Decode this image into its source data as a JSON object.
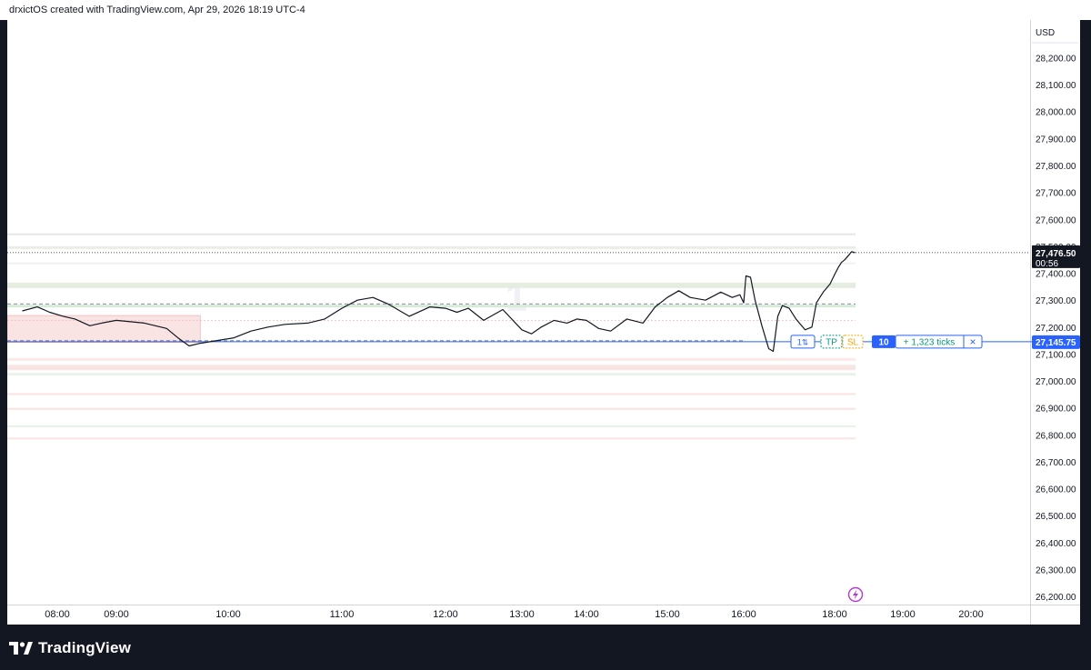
{
  "header": {
    "caption": "drxictOS created with TradingView.com, Apr 29, 2026 18:19 UTC-4"
  },
  "footer": {
    "brand": "TradingView"
  },
  "chart_data": {
    "type": "line",
    "currency": "USD",
    "ylim": [
      26170,
      28340
    ],
    "y_ticks": [
      26200,
      26300,
      26400,
      26500,
      26600,
      26700,
      26800,
      26900,
      27000,
      27100,
      27200,
      27300,
      27400,
      27500,
      27600,
      27700,
      27800,
      27900,
      28000,
      28100,
      28200
    ],
    "y_tick_labels": [
      "26,200.00",
      "26,300.00",
      "26,400.00",
      "26,500.00",
      "26,600.00",
      "26,700.00",
      "26,800.00",
      "26,900.00",
      "27,000.00",
      "27,100.00",
      "27,200.00",
      "27,300.00",
      "27,400.00",
      "27,500.00",
      "27,600.00",
      "27,700.00",
      "27,800.00",
      "27,900.00",
      "28,000.00",
      "28,100.00",
      "28,200.00"
    ],
    "x_ticks": [
      {
        "label": "08:00",
        "hour": 8.0
      },
      {
        "label": "09:00",
        "hour": 9.0
      },
      {
        "label": "10:00",
        "hour": 10.0
      },
      {
        "label": "11:00",
        "hour": 11.0
      },
      {
        "label": "12:00",
        "hour": 12.0
      },
      {
        "label": "13:00",
        "hour": 13.0
      },
      {
        "label": "14:00",
        "hour": 14.0
      },
      {
        "label": "15:00",
        "hour": 15.0
      },
      {
        "label": "16:00",
        "hour": 16.0
      },
      {
        "label": "18:00",
        "hour": 18.0
      },
      {
        "label": "19:00",
        "hour": 19.0
      },
      {
        "label": "20:00",
        "hour": 20.0
      }
    ],
    "series": [
      {
        "x": [
          7.3,
          7.6,
          7.85,
          8.1,
          8.3,
          8.55,
          8.75,
          9.0,
          9.25,
          9.45,
          9.55,
          9.65,
          9.75,
          9.9,
          10.05,
          10.2,
          10.35,
          10.5,
          10.7,
          10.85,
          11.0,
          11.15,
          11.3,
          11.45,
          11.65,
          11.85,
          12.0,
          12.15,
          12.3,
          12.5,
          12.75,
          13.0,
          13.15,
          13.3,
          13.5,
          13.7,
          13.85,
          14.0,
          14.15,
          14.3,
          14.5,
          14.7,
          14.85,
          15.0,
          15.15,
          15.3,
          15.5,
          15.7,
          15.85,
          15.95,
          16.0,
          16.05,
          16.15,
          16.25,
          16.4,
          16.55,
          16.65,
          16.75,
          16.85,
          17.0,
          17.15,
          17.35,
          17.5,
          17.6,
          17.75,
          17.9,
          18.0,
          18.05,
          18.1,
          18.15,
          18.2,
          18.25,
          18.3
        ],
        "y": [
          27260,
          27275,
          27255,
          27240,
          27230,
          27205,
          27215,
          27225,
          27215,
          27195,
          27160,
          27130,
          27140,
          27150,
          27160,
          27185,
          27200,
          27210,
          27215,
          27230,
          27270,
          27300,
          27310,
          27285,
          27240,
          27275,
          27270,
          27255,
          27270,
          27225,
          27265,
          27190,
          27175,
          27200,
          27225,
          27215,
          27230,
          27225,
          27195,
          27185,
          27230,
          27215,
          27275,
          27310,
          27335,
          27310,
          27300,
          27330,
          27310,
          27320,
          27290,
          27390,
          27385,
          27300,
          27205,
          27120,
          27110,
          27240,
          27280,
          27270,
          27230,
          27190,
          27200,
          27290,
          27330,
          27360,
          27395,
          27420,
          27440,
          27450,
          27465,
          27480,
          27476
        ]
      }
    ],
    "last_price": "27,476.50",
    "countdown": "00:56",
    "order": {
      "price_label": "27,145.75",
      "quantity": "10",
      "ticks_label": "+ 1,323 ticks",
      "reverse_icon": "1⇅",
      "tp": "TP",
      "sl": "SL",
      "close": "×"
    },
    "watermark": "1"
  }
}
